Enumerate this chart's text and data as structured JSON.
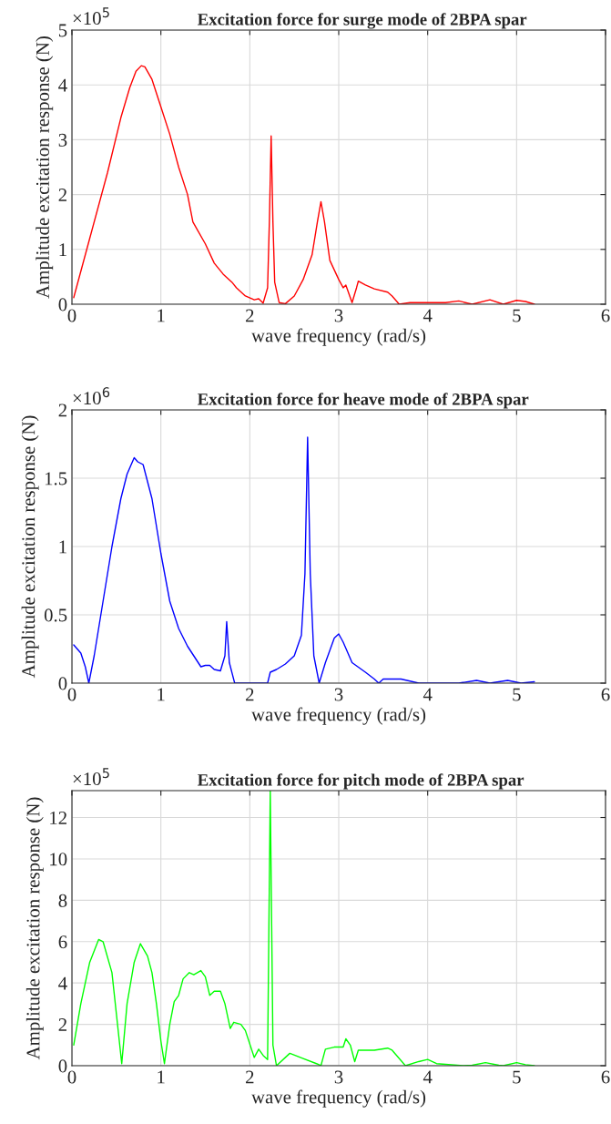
{
  "chart_data": [
    {
      "type": "line",
      "title": "Excitation force for surge mode of 2BPA spar",
      "xlabel": "wave frequency (rad/s)",
      "ylabel": "Amplitude excitation response (N)",
      "annotations": [
        "×10$^{5}$"
      ],
      "xlim": [
        0,
        6
      ],
      "xticks": [
        0,
        1,
        2,
        3,
        4,
        5,
        6
      ],
      "ylim": [
        0,
        5
      ],
      "yticks": [
        0,
        1,
        2,
        3,
        4,
        5
      ],
      "grid": true,
      "legend": false,
      "series": [
        {
          "color": "#ff0000",
          "x": [
            0.02,
            0.2,
            0.4,
            0.55,
            0.65,
            0.72,
            0.78,
            0.82,
            0.9,
            1.0,
            1.1,
            1.2,
            1.3,
            1.36,
            1.5,
            1.6,
            1.7,
            1.8,
            1.85,
            1.95,
            2.05,
            2.1,
            2.15,
            2.2,
            2.22,
            2.24,
            2.26,
            2.28,
            2.33,
            2.4,
            2.5,
            2.6,
            2.7,
            2.76,
            2.8,
            2.84,
            2.9,
            3.0,
            3.05,
            3.08,
            3.15,
            3.2,
            3.22,
            3.3,
            3.4,
            3.55,
            3.6,
            3.68,
            3.8,
            4.0,
            4.2,
            4.35,
            4.5,
            4.7,
            4.85,
            5.0,
            5.1,
            5.2
          ],
          "values": [
            0.12,
            1.2,
            2.4,
            3.4,
            3.95,
            4.25,
            4.35,
            4.33,
            4.1,
            3.6,
            3.1,
            2.5,
            2.0,
            1.5,
            1.1,
            0.75,
            0.55,
            0.4,
            0.3,
            0.15,
            0.08,
            0.1,
            0.02,
            0.3,
            1.5,
            3.07,
            1.5,
            0.4,
            0.03,
            0.01,
            0.15,
            0.45,
            0.9,
            1.5,
            1.87,
            1.5,
            0.8,
            0.45,
            0.3,
            0.35,
            0.03,
            0.3,
            0.42,
            0.35,
            0.28,
            0.22,
            0.15,
            0.0,
            0.03,
            0.03,
            0.03,
            0.06,
            0.0,
            0.08,
            0.0,
            0.07,
            0.05,
            0.0
          ]
        }
      ]
    },
    {
      "type": "line",
      "title": "Excitation force for heave mode of 2BPA spar",
      "xlabel": "wave frequency (rad/s)",
      "ylabel": "Amplitude excitation response (N)",
      "annotations": [
        "×10$^{6}$"
      ],
      "xlim": [
        0,
        6
      ],
      "xticks": [
        0,
        1,
        2,
        3,
        4,
        5,
        6
      ],
      "ylim": [
        0,
        2
      ],
      "yticks": [
        0,
        0.5,
        1,
        1.5,
        2
      ],
      "grid": true,
      "legend": false,
      "series": [
        {
          "color": "#0000ff",
          "x": [
            0.02,
            0.1,
            0.15,
            0.19,
            0.25,
            0.35,
            0.45,
            0.55,
            0.62,
            0.7,
            0.74,
            0.8,
            0.9,
            1.0,
            1.1,
            1.2,
            1.3,
            1.35,
            1.45,
            1.5,
            1.55,
            1.6,
            1.67,
            1.72,
            1.74,
            1.77,
            1.83,
            2.0,
            2.2,
            2.23,
            2.3,
            2.4,
            2.5,
            2.58,
            2.62,
            2.65,
            2.68,
            2.72,
            2.78,
            2.85,
            2.95,
            3.0,
            3.05,
            3.15,
            3.3,
            3.4,
            3.45,
            3.5,
            3.7,
            3.9,
            4.2,
            4.35,
            4.55,
            4.7,
            4.9,
            5.05,
            5.2
          ],
          "values": [
            0.28,
            0.22,
            0.12,
            0.0,
            0.2,
            0.6,
            1.0,
            1.35,
            1.53,
            1.65,
            1.62,
            1.6,
            1.35,
            0.95,
            0.6,
            0.4,
            0.27,
            0.22,
            0.12,
            0.13,
            0.13,
            0.1,
            0.09,
            0.2,
            0.45,
            0.15,
            0.0,
            0.0,
            0.0,
            0.08,
            0.1,
            0.14,
            0.2,
            0.35,
            0.8,
            1.8,
            0.8,
            0.2,
            0.0,
            0.15,
            0.33,
            0.36,
            0.3,
            0.15,
            0.08,
            0.03,
            0.0,
            0.03,
            0.03,
            0.0,
            0.0,
            0.0,
            0.02,
            0.0,
            0.02,
            0.0,
            0.01
          ]
        }
      ]
    },
    {
      "type": "line",
      "title": "Excitation force for pitch mode of 2BPA spar",
      "xlabel": "wave frequency (rad/s)",
      "ylabel": "Amplitude excitation response (N)",
      "annotations": [
        "×10$^{5}$"
      ],
      "xlim": [
        0,
        6
      ],
      "xticks": [
        0,
        1,
        2,
        3,
        4,
        5,
        6
      ],
      "ylim": [
        0,
        13.3
      ],
      "yticks": [
        0,
        2,
        4,
        6,
        8,
        10,
        12
      ],
      "grid": true,
      "legend": false,
      "series": [
        {
          "color": "#00ff00",
          "x": [
            0.02,
            0.1,
            0.2,
            0.3,
            0.35,
            0.45,
            0.5,
            0.56,
            0.62,
            0.7,
            0.77,
            0.85,
            0.9,
            0.95,
            1.0,
            1.04,
            1.1,
            1.15,
            1.2,
            1.25,
            1.32,
            1.37,
            1.45,
            1.5,
            1.55,
            1.6,
            1.67,
            1.72,
            1.78,
            1.82,
            1.9,
            1.95,
            2.05,
            2.1,
            2.15,
            2.2,
            2.23,
            2.26,
            2.3,
            2.45,
            2.6,
            2.75,
            2.8,
            2.85,
            2.95,
            3.05,
            3.08,
            3.13,
            3.18,
            3.22,
            3.4,
            3.55,
            3.6,
            3.75,
            3.9,
            4.0,
            4.1,
            4.4,
            4.5,
            4.65,
            4.8,
            4.85,
            5.0,
            5.1,
            5.2
          ],
          "values": [
            1.0,
            3.0,
            5.0,
            6.1,
            6.0,
            4.5,
            2.5,
            0.1,
            3.0,
            5.0,
            5.9,
            5.3,
            4.5,
            3.0,
            1.2,
            0.1,
            2.0,
            3.1,
            3.4,
            4.2,
            4.5,
            4.4,
            4.6,
            4.3,
            3.4,
            3.6,
            3.6,
            3.0,
            1.8,
            2.1,
            2.0,
            1.7,
            0.4,
            0.8,
            0.5,
            0.3,
            13.3,
            1.0,
            0.0,
            0.6,
            0.35,
            0.1,
            0.0,
            0.8,
            0.9,
            0.9,
            1.3,
            1.0,
            0.2,
            0.75,
            0.75,
            0.85,
            0.75,
            0.0,
            0.2,
            0.3,
            0.1,
            0.0,
            0.02,
            0.15,
            0.02,
            0.0,
            0.15,
            0.05,
            0.0
          ]
        }
      ]
    }
  ]
}
